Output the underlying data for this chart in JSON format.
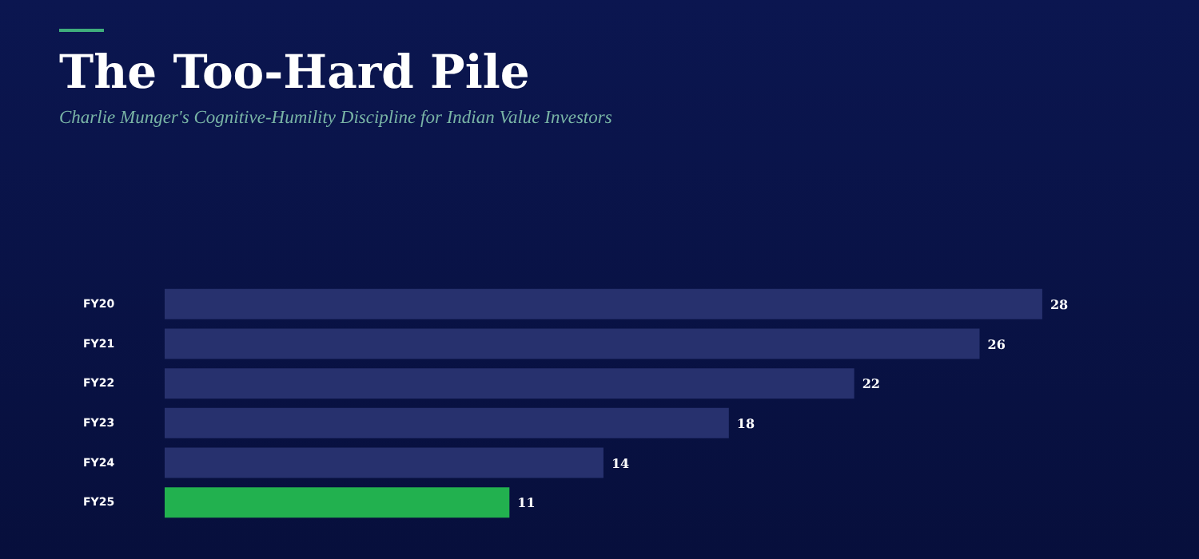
{
  "chart_data": {
    "type": "bar",
    "orientation": "horizontal",
    "title": "The Too-Hard Pile",
    "subtitle": "Charlie Munger's Cognitive-Humility Discipline for Indian Value Investors",
    "categories": [
      "FY20",
      "FY21",
      "FY22",
      "FY23",
      "FY24",
      "FY25"
    ],
    "values": [
      28,
      26,
      22,
      18,
      14,
      11
    ],
    "colors": [
      "#27316e",
      "#27316e",
      "#27316e",
      "#27316e",
      "#27316e",
      "#22b14f"
    ],
    "xlim": [
      0,
      33
    ],
    "tick_labels": "y",
    "data_labels": true
  }
}
